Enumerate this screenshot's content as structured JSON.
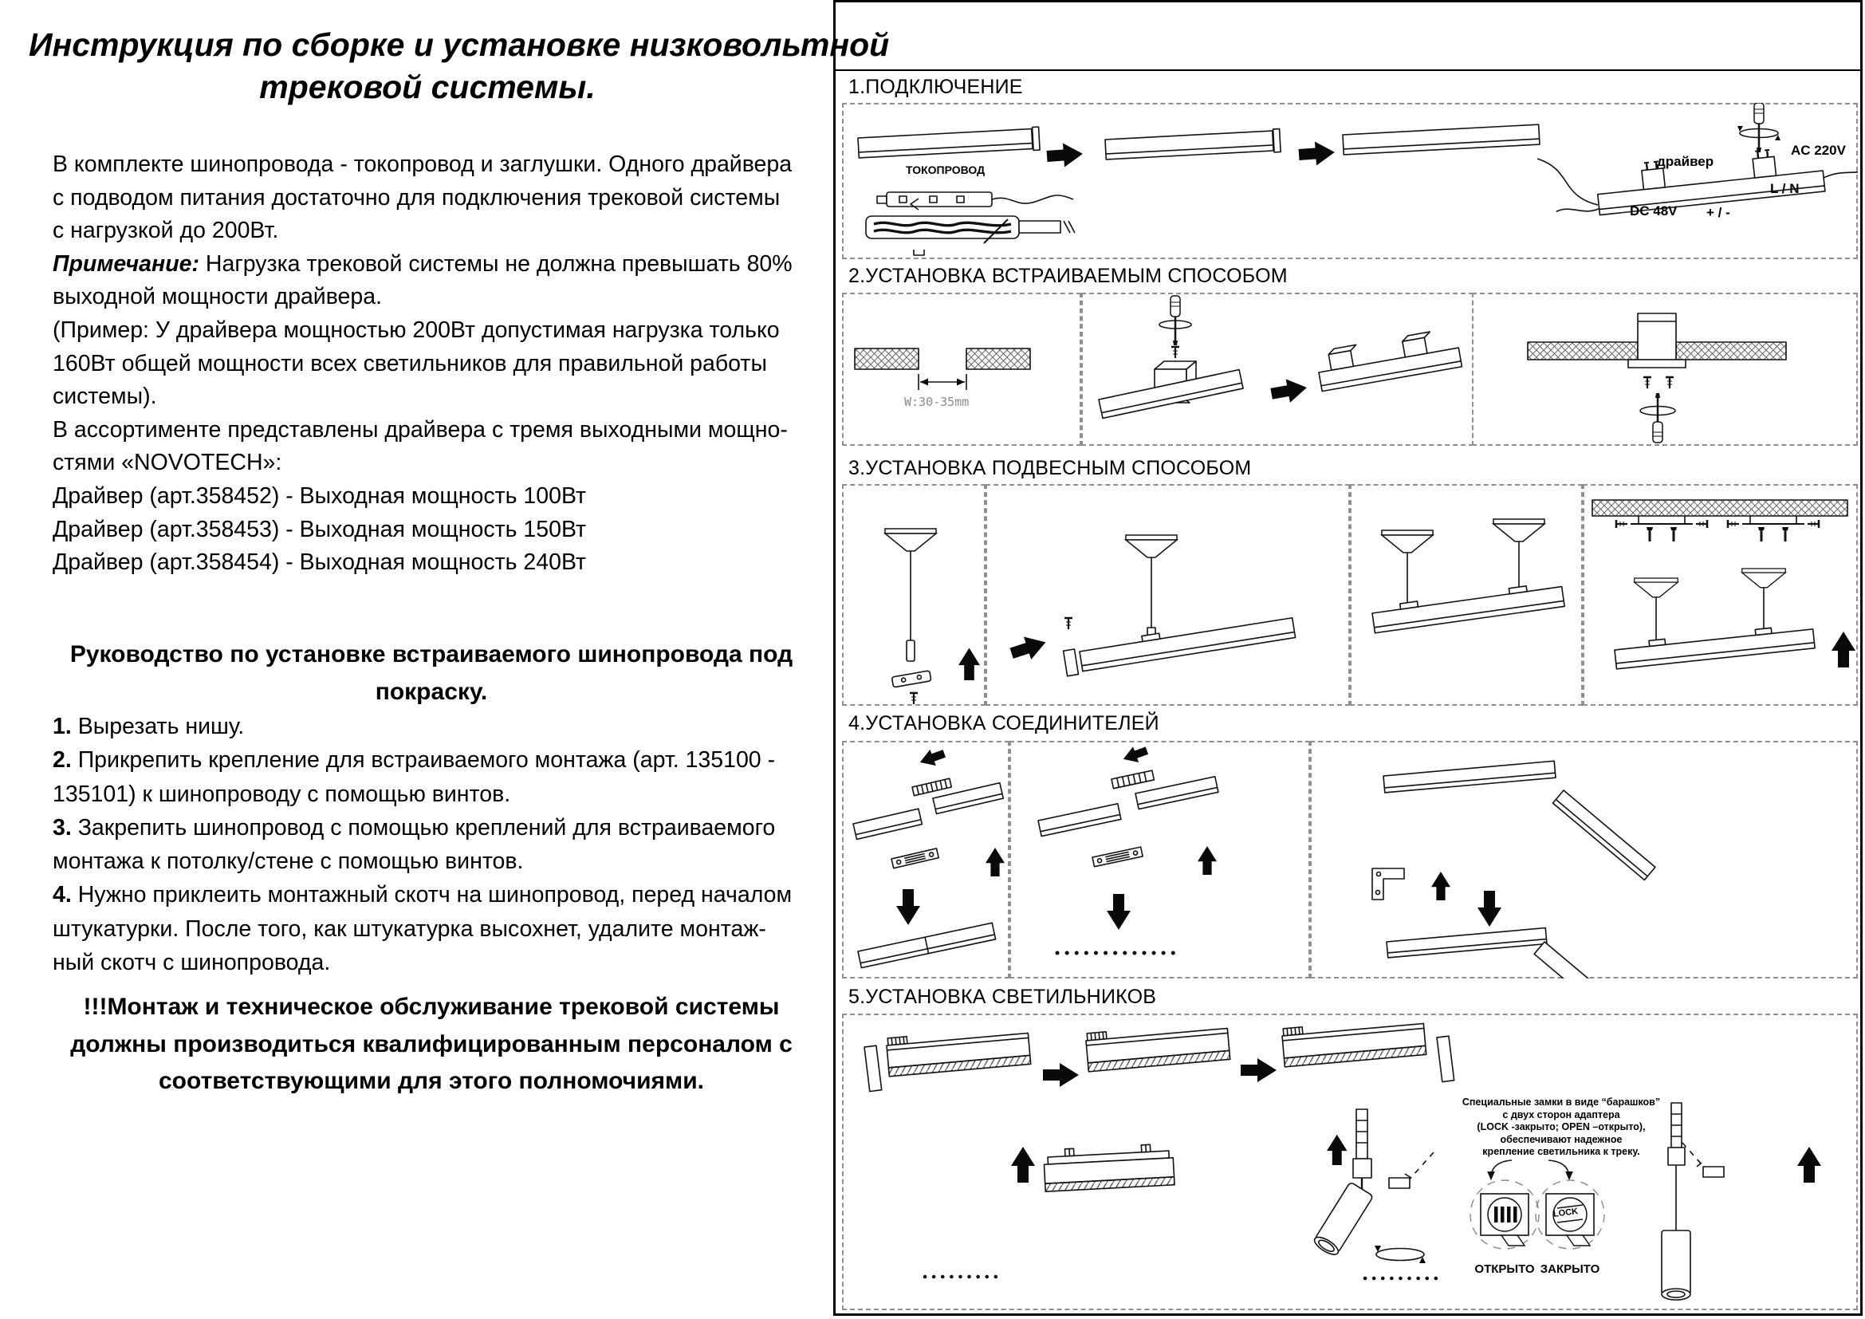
{
  "left": {
    "title_lines": [
      "Инструкция по сборке и установке низковольтной",
      "трековой системы."
    ],
    "body_lines": [
      [
        {
          "t": "В комплекте шинопровода - токопровод и заглушки. Одного драйвера"
        }
      ],
      [
        {
          "t": "с подводом питания достаточно для подключения трековой системы"
        }
      ],
      [
        {
          "t": "с нагрузкой до 200Вт."
        }
      ],
      [
        {
          "t": "Примечание:",
          "bi": true
        },
        {
          "t": " Нагрузка трековой системы не должна превышать 80%"
        }
      ],
      [
        {
          "t": "выходной мощности драйвера."
        }
      ],
      [
        {
          "t": "(Пример: У драйвера мощностью 200Вт допустимая нагрузка только"
        }
      ],
      [
        {
          "t": "160Вт общей мощности всех светильников для правильной работы"
        }
      ],
      [
        {
          "t": "системы)."
        }
      ],
      [
        {
          "t": "В ассортименте представлены драйвера с тремя выходными мощно-"
        }
      ],
      [
        {
          "t": "стями «NOVOTECH»:"
        }
      ],
      [
        {
          "t": "Драйвер (арт.358452) - Выходная мощность 100Вт"
        }
      ],
      [
        {
          "t": "Драйвер (арт.358453) - Выходная мощность 150Вт"
        }
      ],
      [
        {
          "t": "Драйвер (арт.358454) - Выходная мощность 240Вт"
        }
      ]
    ],
    "guide_heading_lines": [
      "Руководство по установке встраиваемого шинопровода под",
      "покраску."
    ],
    "step_lines": [
      [
        {
          "t": "1.",
          "b": true
        },
        {
          "t": " Вырезать нишу."
        }
      ],
      [
        {
          "t": "2.",
          "b": true
        },
        {
          "t": " Прикрепить крепление для встраиваемого монтажа (арт. 135100 -"
        }
      ],
      [
        {
          "t": "135101) к шинопроводу с помощью винтов."
        }
      ],
      [
        {
          "t": "3.",
          "b": true
        },
        {
          "t": " Закрепить шинопровод с помощью креплений для встраиваемого"
        }
      ],
      [
        {
          "t": "монтажа к потолку/стене с помощью винтов."
        }
      ],
      [
        {
          "t": "4.",
          "b": true
        },
        {
          "t": " Нужно приклеить монтажный скотч на шинопровод, перед началом"
        }
      ],
      [
        {
          "t": "штукатурки. После того, как штукатурка высохнет, удалите монтаж-"
        }
      ],
      [
        {
          "t": "ный скотч с шинопровода."
        }
      ]
    ],
    "warning_lines": [
      "!!!Монтаж и техническое обслуживание трековой системы",
      "должны производиться квалифицированным персоналом с",
      "соответствующими для этого полномочиями."
    ]
  },
  "sections": [
    {
      "title": "1.ПОДКЛЮЧЕНИЕ"
    },
    {
      "title": "2.УСТАНОВКА ВСТРАИВАЕМЫМ СПОСОБОМ"
    },
    {
      "title": "3.УСТАНОВКА ПОДВЕСНЫМ СПОСОБОМ"
    },
    {
      "title": "4.УСТАНОВКА СОЕДИНИТЕЛЕЙ"
    },
    {
      "title": "5.УСТАНОВКА СВЕТИЛЬНИКОВ"
    }
  ],
  "labels": {
    "tokoprovod": "ТОКОПРОВОД",
    "driver": "драйвер",
    "ac": "AC 220V",
    "ln": "L / N",
    "dc": "DC 48V",
    "plus_minus": "+ / -",
    "gap_width": "W:30-35mm",
    "open": "ОТКРЫТО",
    "closed": "ЗАКРЫТО",
    "lock": "LOCK",
    "lock_note_lines": [
      [
        {
          "t": "Специальные замки в виде “барашков”"
        }
      ],
      [
        {
          "t": "с двух сторон адаптера"
        }
      ],
      [
        {
          "t": "("
        },
        {
          "t": "LOCK",
          "b": true
        },
        {
          "t": " -закрыто; "
        },
        {
          "t": "OPEN",
          "b": true
        },
        {
          "t": " –открыто),"
        }
      ],
      [
        {
          "t": "обеспечивают надежное"
        }
      ],
      [
        {
          "t": "крепление светильника к треку."
        }
      ]
    ]
  }
}
